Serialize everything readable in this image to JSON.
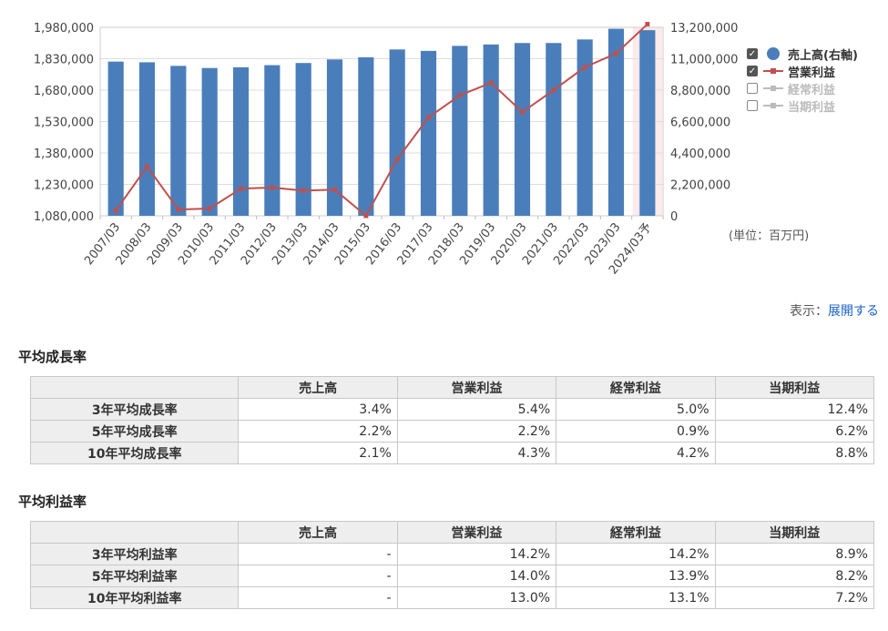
{
  "chart_data": {
    "type": "bar+line",
    "categories": [
      "2007/03",
      "2008/03",
      "2009/03",
      "2010/03",
      "2011/03",
      "2012/03",
      "2013/03",
      "2014/03",
      "2015/03",
      "2016/03",
      "2017/03",
      "2018/03",
      "2019/03",
      "2020/03",
      "2021/03",
      "2022/03",
      "2023/03",
      "2024/03予"
    ],
    "y_left": {
      "min": 1080000,
      "max": 1980000,
      "ticks": [
        "1,980,000",
        "1,830,000",
        "1,680,000",
        "1,530,000",
        "1,380,000",
        "1,230,000",
        "1,080,000"
      ]
    },
    "y_right": {
      "min": 0,
      "max": 13200000,
      "ticks": [
        "13,200,000",
        "11,000,000",
        "8,800,000",
        "6,600,000",
        "4,400,000",
        "2,200,000",
        "0"
      ]
    },
    "series": [
      {
        "name": "売上高(右軸)",
        "type": "bar",
        "axis": "right",
        "color": "#4a7ebb",
        "values": [
          10800000,
          10750000,
          10500000,
          10350000,
          10400000,
          10550000,
          10700000,
          10950000,
          11100000,
          11650000,
          11550000,
          11900000,
          12000000,
          12100000,
          12100000,
          12350000,
          13100000,
          13000000
        ]
      },
      {
        "name": "営業利益",
        "type": "line",
        "axis": "left",
        "color": "#c0504d",
        "values": [
          1105000,
          1315000,
          1110000,
          1115000,
          1210000,
          1215000,
          1200000,
          1205000,
          1080000,
          1350000,
          1550000,
          1655000,
          1715000,
          1575000,
          1680000,
          1790000,
          1855000,
          1995000
        ]
      }
    ],
    "highlight_last": true
  },
  "legend": [
    {
      "label": "売上高(右軸)",
      "checked": true,
      "color": "#4a7ebb",
      "kind": "dot"
    },
    {
      "label": "営業利益",
      "checked": true,
      "color": "#c0504d",
      "kind": "line"
    },
    {
      "label": "経常利益",
      "checked": false,
      "color": "#bbbbbb",
      "kind": "line"
    },
    {
      "label": "当期利益",
      "checked": false,
      "color": "#bbbbbb",
      "kind": "line"
    }
  ],
  "unit_label": "(単位：百万円)",
  "display": {
    "prefix": "表示：",
    "link": "展開する"
  },
  "growth": {
    "title": "平均成長率",
    "columns": [
      "売上高",
      "営業利益",
      "経常利益",
      "当期利益"
    ],
    "rows": [
      {
        "label": "3年平均成長率",
        "values": [
          "3.4%",
          "5.4%",
          "5.0%",
          "12.4%"
        ]
      },
      {
        "label": "5年平均成長率",
        "values": [
          "2.2%",
          "2.2%",
          "0.9%",
          "6.2%"
        ]
      },
      {
        "label": "10年平均成長率",
        "values": [
          "2.1%",
          "4.3%",
          "4.2%",
          "8.8%"
        ]
      }
    ]
  },
  "margin": {
    "title": "平均利益率",
    "columns": [
      "売上高",
      "営業利益",
      "経常利益",
      "当期利益"
    ],
    "rows": [
      {
        "label": "3年平均利益率",
        "values": [
          "-",
          "14.2%",
          "14.2%",
          "8.9%"
        ]
      },
      {
        "label": "5年平均利益率",
        "values": [
          "-",
          "14.0%",
          "13.9%",
          "8.2%"
        ]
      },
      {
        "label": "10年平均利益率",
        "values": [
          "-",
          "13.0%",
          "13.1%",
          "7.2%"
        ]
      }
    ]
  }
}
